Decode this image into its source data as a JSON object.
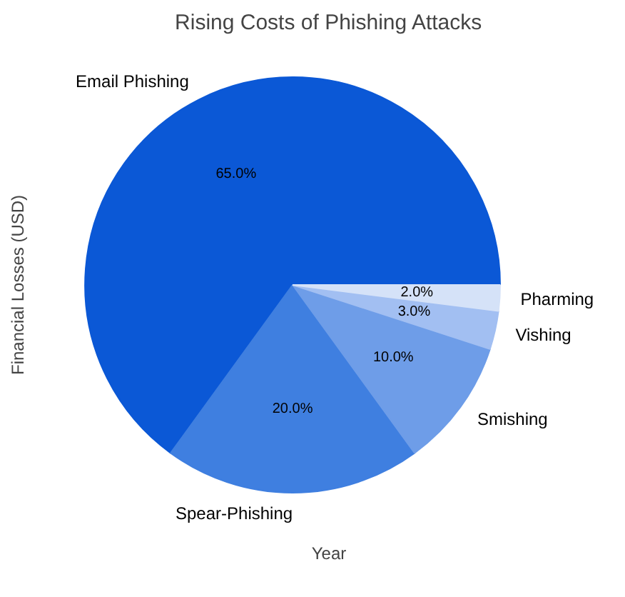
{
  "chart_data": {
    "type": "pie",
    "title": "Rising Costs of Phishing Attacks",
    "xlabel": "Year",
    "ylabel": "Financial Losses (USD)",
    "categories": [
      "Email Phishing",
      "Spear-Phishing",
      "Smishing",
      "Vishing",
      "Pharming"
    ],
    "values": [
      65,
      20,
      10,
      3,
      2
    ],
    "value_labels": [
      "65.0%",
      "20.0%",
      "10.0%",
      "3.0%",
      "2.0%"
    ],
    "colors": [
      "#0b58d6",
      "#3f7fe0",
      "#6e9de8",
      "#a2bff2",
      "#d5e2f8"
    ]
  }
}
